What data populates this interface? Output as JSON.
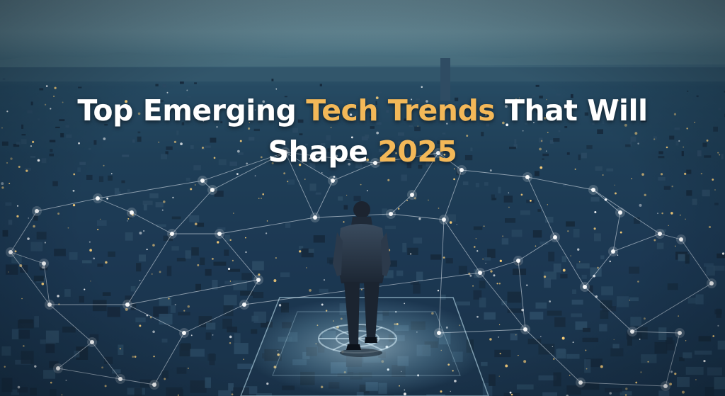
{
  "headline": {
    "line1_part1": "Top Emerging",
    "line1_accent": "Tech Trends",
    "line1_part2": "That Will",
    "line2_part1": "Shape",
    "line2_accent": "2025"
  },
  "colors": {
    "text": "#ffffff",
    "accent": "#f3b858",
    "sky": "#5d8390",
    "city": "#1b3550",
    "network_line": "#e8eef5",
    "city_light": "#ffd27a"
  },
  "scene": {
    "subject": "businessman-standing",
    "background": "night-cityscape",
    "overlay": "connected-network-nodes"
  }
}
